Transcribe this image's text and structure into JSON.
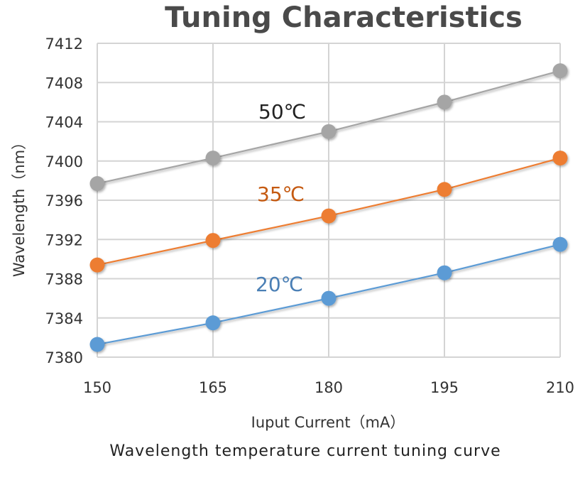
{
  "chart_data": {
    "type": "line",
    "title": "Tuning Characteristics",
    "xlabel": "Iuput Current（mA）",
    "ylabel": "Wavelength（nm）",
    "caption": "Wavelength temperature current tuning curve",
    "x": [
      150,
      165,
      180,
      195,
      210
    ],
    "x_tick_labels": [
      "150",
      "165",
      "180",
      "195",
      "210"
    ],
    "y_tick_labels": [
      "7380",
      "7384",
      "7388",
      "7392",
      "7396",
      "7400",
      "7404",
      "7408",
      "7412"
    ],
    "y_ticks": [
      7380,
      7384,
      7388,
      7392,
      7396,
      7400,
      7404,
      7408,
      7412
    ],
    "ylim": [
      7380,
      7412
    ],
    "xlim": [
      150,
      210
    ],
    "grid": true,
    "legend": "inline-labels",
    "series": [
      {
        "name": "50℃",
        "color": "#a5a5a5",
        "label_color": "#222222",
        "values": [
          7397.7,
          7400.3,
          7403.0,
          7406.0,
          7409.2
        ]
      },
      {
        "name": "35℃",
        "color": "#ed7d31",
        "label_color": "#c55a11",
        "values": [
          7389.4,
          7391.9,
          7394.4,
          7397.1,
          7400.3
        ]
      },
      {
        "name": "20℃",
        "color": "#5b9bd5",
        "label_color": "#4a7fb5",
        "values": [
          7381.3,
          7383.5,
          7386.0,
          7388.6,
          7391.5
        ]
      }
    ]
  }
}
